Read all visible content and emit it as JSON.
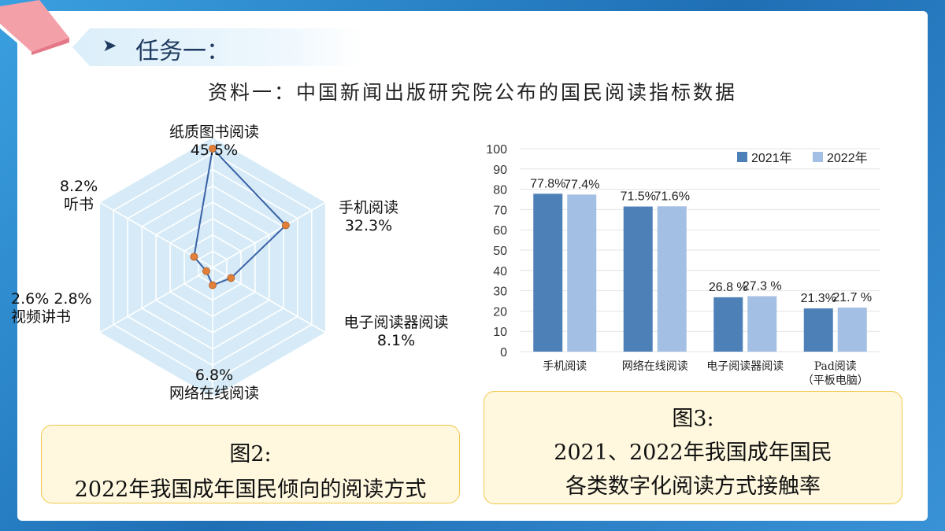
{
  "header": {
    "task_title": "任务一："
  },
  "subtitle": "资料一：中国新闻出版研究院公布的国民阅读指标数据",
  "radar": {
    "labels": {
      "paper_books": {
        "name": "纸质图书阅读",
        "value": "45.5%"
      },
      "mobile": {
        "name": "手机阅读",
        "value": "32.3%"
      },
      "ereader": {
        "name": "电子阅读器阅读",
        "value": "8.1%"
      },
      "online": {
        "value": "6.8%",
        "name": "网络在线阅读"
      },
      "video": {
        "value_a": "2.6%",
        "value_b": "2.8%",
        "name": "视频讲书"
      },
      "listening": {
        "value": "8.2%",
        "name": "听书"
      }
    },
    "caption": {
      "line1": "图2:",
      "line2": "2022年我国成年国民倾向的阅读方式"
    }
  },
  "bar": {
    "caption": {
      "line1": "图3:",
      "line2": "2021、2022年我国成年国民",
      "line3": "各类数字化阅读方式接触率"
    }
  },
  "chart_data": [
    {
      "type": "radar",
      "categories": [
        "纸质图书阅读",
        "手机阅读",
        "电子阅读器阅读",
        "网络在线阅读",
        "视频讲书",
        "听书"
      ],
      "values": [
        45.5,
        32.3,
        8.1,
        6.8,
        2.8,
        8.2
      ],
      "value_labels": [
        "45.5%",
        "32.3%",
        "8.1%",
        "6.8%",
        "2.8%",
        "8.2%"
      ],
      "extra_labels": [
        "2.6%"
      ],
      "rmax": 50,
      "grid_rings": 8,
      "colors": {
        "line": "#3a62a6",
        "point": "#e0803a",
        "grid_fill": "#d6ebf7",
        "grid_line": "#ffffff"
      }
    },
    {
      "type": "bar",
      "categories": [
        "手机阅读",
        "网络在线阅读",
        "电子阅读器阅读",
        "Pad阅读\n（平板电脑）"
      ],
      "series": [
        {
          "name": "2021年",
          "values": [
            77.8,
            71.5,
            26.8,
            21.3
          ],
          "labels": [
            "77.8%",
            "71.5%",
            "26.8 %",
            "21.3%"
          ],
          "color": "#4e80b8"
        },
        {
          "name": "2022年",
          "values": [
            77.4,
            71.6,
            27.3,
            21.7
          ],
          "labels": [
            "77.4%",
            "71.6%",
            "27.3 %",
            "21.7 %"
          ],
          "color": "#a3bfe3"
        }
      ],
      "ylim": [
        0,
        100
      ],
      "yticks": [
        0,
        10,
        20,
        30,
        40,
        50,
        60,
        70,
        80,
        90,
        100
      ],
      "grid": true,
      "legend": "top-right"
    }
  ]
}
